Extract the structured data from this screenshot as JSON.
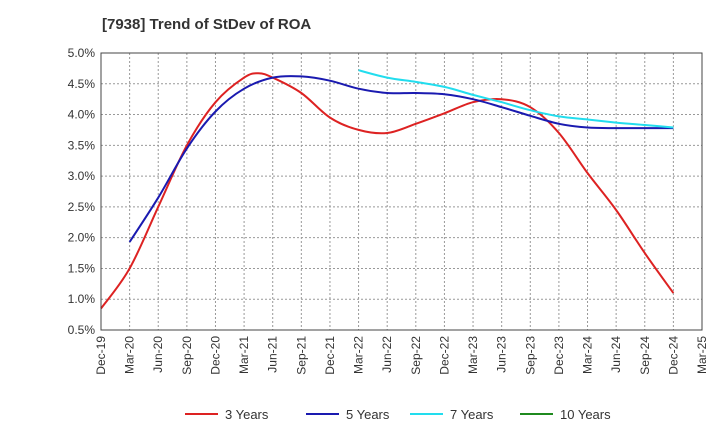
{
  "chart_data": {
    "type": "line",
    "title": "[7938]  Trend of StDev of ROA",
    "xlabel": "",
    "ylabel": "",
    "x_ticks": [
      "Dec-19",
      "Mar-20",
      "Jun-20",
      "Sep-20",
      "Dec-20",
      "Mar-21",
      "Jun-21",
      "Sep-21",
      "Dec-21",
      "Mar-22",
      "Jun-22",
      "Sep-22",
      "Dec-22",
      "Mar-23",
      "Jun-23",
      "Sep-23",
      "Dec-23",
      "Mar-24",
      "Jun-24",
      "Sep-24",
      "Dec-24",
      "Mar-25"
    ],
    "y_ticks": [
      "5.0%",
      "4.5%",
      "4.0%",
      "3.5%",
      "3.0%",
      "2.5%",
      "2.0%",
      "1.5%",
      "1.0%",
      "0.5%"
    ],
    "ylim": [
      0.5,
      5.0
    ],
    "grid": true,
    "legend_position": "bottom",
    "series": [
      {
        "name": "3 Years",
        "color": "#dd2222",
        "points": [
          [
            0,
            0.85
          ],
          [
            1,
            1.5
          ],
          [
            2,
            2.5
          ],
          [
            3,
            3.5
          ],
          [
            4,
            4.2
          ],
          [
            5,
            4.6
          ],
          [
            5.5,
            4.67
          ],
          [
            6,
            4.6
          ],
          [
            7,
            4.35
          ],
          [
            8,
            3.95
          ],
          [
            9,
            3.75
          ],
          [
            10,
            3.7
          ],
          [
            11,
            3.85
          ],
          [
            12,
            4.02
          ],
          [
            13,
            4.2
          ],
          [
            14,
            4.25
          ],
          [
            15,
            4.12
          ],
          [
            16,
            3.7
          ],
          [
            17,
            3.05
          ],
          [
            18,
            2.45
          ],
          [
            19,
            1.75
          ],
          [
            20,
            1.1
          ]
        ]
      },
      {
        "name": "5 Years",
        "color": "#1a1ab0",
        "points": [
          [
            1,
            1.93
          ],
          [
            2,
            2.65
          ],
          [
            3,
            3.45
          ],
          [
            4,
            4.05
          ],
          [
            5,
            4.42
          ],
          [
            6,
            4.6
          ],
          [
            7,
            4.62
          ],
          [
            8,
            4.55
          ],
          [
            9,
            4.42
          ],
          [
            10,
            4.35
          ],
          [
            11,
            4.35
          ],
          [
            12,
            4.33
          ],
          [
            13,
            4.25
          ],
          [
            14,
            4.12
          ],
          [
            15,
            3.98
          ],
          [
            16,
            3.85
          ],
          [
            17,
            3.79
          ],
          [
            18,
            3.78
          ],
          [
            19,
            3.78
          ],
          [
            20,
            3.78
          ]
        ]
      },
      {
        "name": "7 Years",
        "color": "#22ddee",
        "points": [
          [
            9,
            4.72
          ],
          [
            10,
            4.6
          ],
          [
            11,
            4.53
          ],
          [
            12,
            4.45
          ],
          [
            13,
            4.32
          ],
          [
            14,
            4.2
          ],
          [
            15,
            4.07
          ],
          [
            16,
            3.97
          ],
          [
            17,
            3.92
          ],
          [
            18,
            3.87
          ],
          [
            19,
            3.83
          ],
          [
            20,
            3.79
          ]
        ]
      },
      {
        "name": "10 Years",
        "color": "#1f8a1f",
        "points": []
      }
    ]
  }
}
